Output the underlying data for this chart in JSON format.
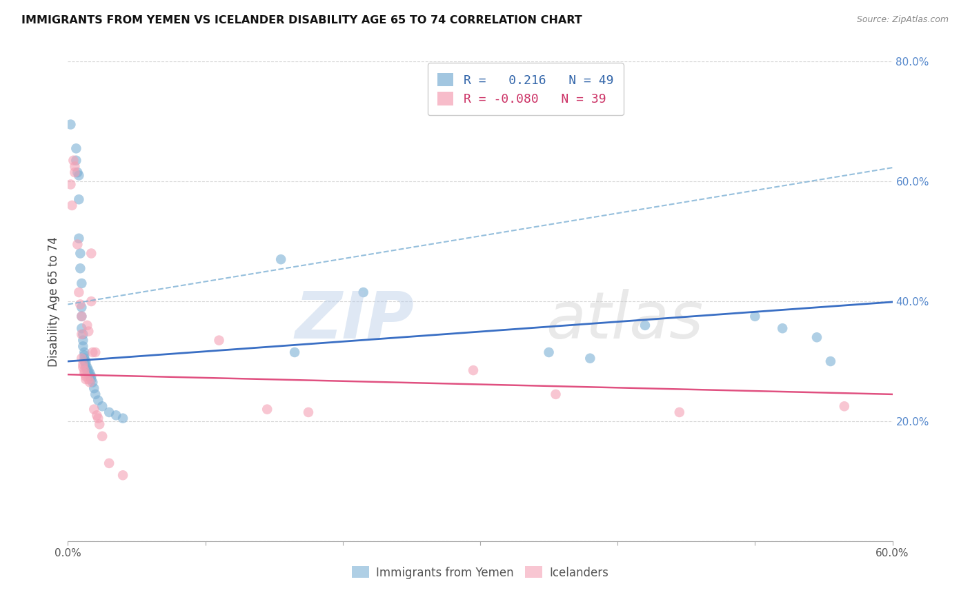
{
  "title": "IMMIGRANTS FROM YEMEN VS ICELANDER DISABILITY AGE 65 TO 74 CORRELATION CHART",
  "source": "Source: ZipAtlas.com",
  "ylabel": "Disability Age 65 to 74",
  "xlim": [
    0.0,
    0.6
  ],
  "ylim": [
    0.0,
    0.8
  ],
  "blue_color": "#7bafd4",
  "pink_color": "#f4a0b4",
  "blue_line_color": "#3a6fc4",
  "pink_line_color": "#e05080",
  "blue_intercept": 0.3,
  "blue_slope": 0.165,
  "pink_intercept": 0.278,
  "pink_slope": -0.055,
  "ci_intercept": 0.395,
  "ci_slope": 0.38,
  "blue_points": [
    [
      0.002,
      0.695
    ],
    [
      0.006,
      0.655
    ],
    [
      0.006,
      0.635
    ],
    [
      0.007,
      0.615
    ],
    [
      0.008,
      0.61
    ],
    [
      0.008,
      0.57
    ],
    [
      0.008,
      0.505
    ],
    [
      0.009,
      0.48
    ],
    [
      0.009,
      0.455
    ],
    [
      0.01,
      0.43
    ],
    [
      0.01,
      0.39
    ],
    [
      0.01,
      0.375
    ],
    [
      0.01,
      0.355
    ],
    [
      0.011,
      0.345
    ],
    [
      0.011,
      0.335
    ],
    [
      0.011,
      0.325
    ],
    [
      0.012,
      0.315
    ],
    [
      0.012,
      0.31
    ],
    [
      0.012,
      0.305
    ],
    [
      0.012,
      0.3
    ],
    [
      0.013,
      0.3
    ],
    [
      0.013,
      0.295
    ],
    [
      0.013,
      0.29
    ],
    [
      0.014,
      0.29
    ],
    [
      0.014,
      0.285
    ],
    [
      0.015,
      0.285
    ],
    [
      0.015,
      0.28
    ],
    [
      0.016,
      0.28
    ],
    [
      0.016,
      0.275
    ],
    [
      0.017,
      0.275
    ],
    [
      0.017,
      0.27
    ],
    [
      0.018,
      0.265
    ],
    [
      0.019,
      0.255
    ],
    [
      0.02,
      0.245
    ],
    [
      0.022,
      0.235
    ],
    [
      0.025,
      0.225
    ],
    [
      0.03,
      0.215
    ],
    [
      0.035,
      0.21
    ],
    [
      0.04,
      0.205
    ],
    [
      0.155,
      0.47
    ],
    [
      0.165,
      0.315
    ],
    [
      0.215,
      0.415
    ],
    [
      0.35,
      0.315
    ],
    [
      0.38,
      0.305
    ],
    [
      0.42,
      0.36
    ],
    [
      0.5,
      0.375
    ],
    [
      0.52,
      0.355
    ],
    [
      0.545,
      0.34
    ],
    [
      0.555,
      0.3
    ]
  ],
  "pink_points": [
    [
      0.002,
      0.595
    ],
    [
      0.003,
      0.56
    ],
    [
      0.004,
      0.635
    ],
    [
      0.005,
      0.625
    ],
    [
      0.005,
      0.615
    ],
    [
      0.007,
      0.495
    ],
    [
      0.008,
      0.415
    ],
    [
      0.009,
      0.395
    ],
    [
      0.01,
      0.375
    ],
    [
      0.01,
      0.345
    ],
    [
      0.01,
      0.305
    ],
    [
      0.011,
      0.295
    ],
    [
      0.011,
      0.29
    ],
    [
      0.012,
      0.285
    ],
    [
      0.012,
      0.28
    ],
    [
      0.013,
      0.275
    ],
    [
      0.013,
      0.27
    ],
    [
      0.014,
      0.36
    ],
    [
      0.015,
      0.35
    ],
    [
      0.015,
      0.27
    ],
    [
      0.016,
      0.265
    ],
    [
      0.017,
      0.48
    ],
    [
      0.017,
      0.4
    ],
    [
      0.018,
      0.315
    ],
    [
      0.019,
      0.22
    ],
    [
      0.02,
      0.315
    ],
    [
      0.021,
      0.21
    ],
    [
      0.022,
      0.205
    ],
    [
      0.023,
      0.195
    ],
    [
      0.025,
      0.175
    ],
    [
      0.03,
      0.13
    ],
    [
      0.04,
      0.11
    ],
    [
      0.11,
      0.335
    ],
    [
      0.145,
      0.22
    ],
    [
      0.175,
      0.215
    ],
    [
      0.295,
      0.285
    ],
    [
      0.355,
      0.245
    ],
    [
      0.445,
      0.215
    ],
    [
      0.565,
      0.225
    ]
  ]
}
